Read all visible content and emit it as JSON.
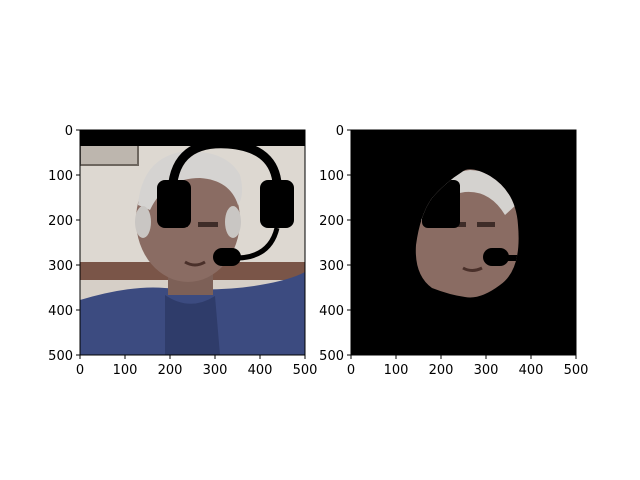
{
  "chart_data": [
    {
      "type": "image",
      "title": "",
      "content": "portrait with headset overlay",
      "xlim": [
        0,
        500
      ],
      "ylim": [
        500,
        0
      ],
      "xticks": [
        0,
        100,
        200,
        300,
        400,
        500
      ],
      "yticks": [
        0,
        100,
        200,
        300,
        400,
        500
      ],
      "xtick_labels": [
        "0",
        "100",
        "200",
        "300",
        "400",
        "500"
      ],
      "ytick_labels": [
        "0",
        "100",
        "200",
        "300",
        "400",
        "500"
      ]
    },
    {
      "type": "image",
      "title": "",
      "content": "segmented face mask on black background",
      "xlim": [
        0,
        500
      ],
      "ylim": [
        500,
        0
      ],
      "xticks": [
        0,
        100,
        200,
        300,
        400,
        500
      ],
      "yticks": [
        0,
        100,
        200,
        300,
        400,
        500
      ],
      "xtick_labels": [
        "0",
        "100",
        "200",
        "300",
        "400",
        "500"
      ],
      "ytick_labels": [
        "0",
        "100",
        "200",
        "300",
        "400",
        "500"
      ]
    }
  ],
  "colors": {
    "mask_background": "#000000",
    "wall": "#d9d3cc",
    "jacket": "#3a4a7e",
    "skin": "#8a6e66",
    "hair": "#d8d8d8",
    "headset": "#000000"
  }
}
